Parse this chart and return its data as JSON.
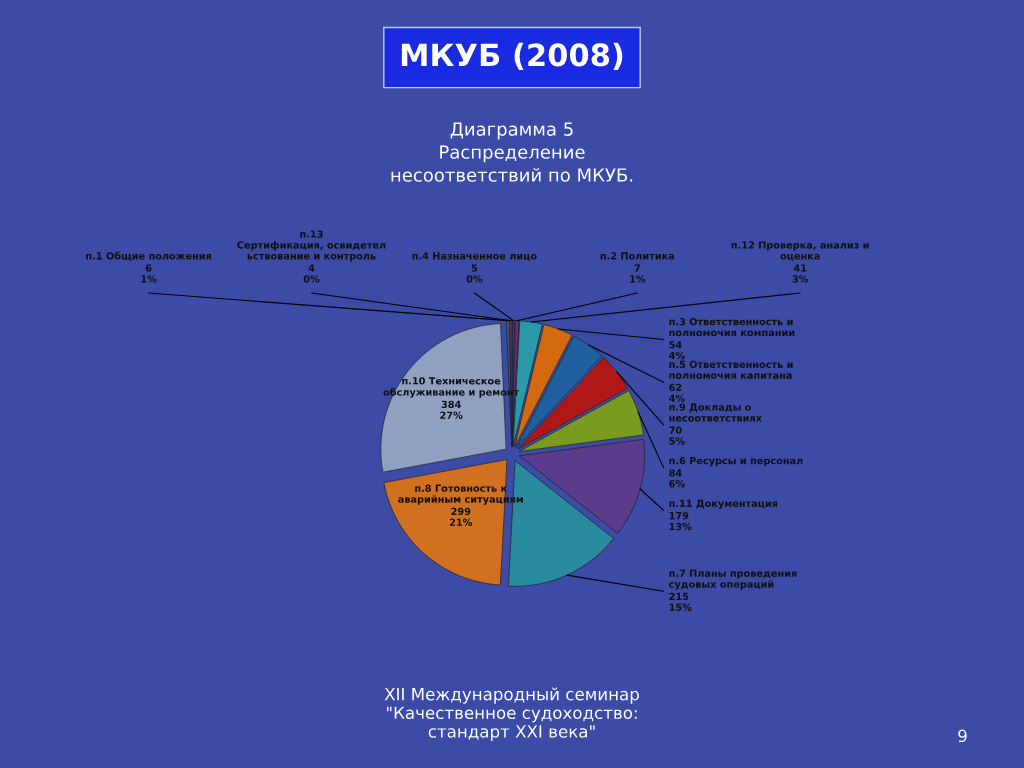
{
  "chart_data": {
    "type": "pie",
    "title": "МКУБ (2008)",
    "subtitle": "Диаграмма 5\nРаспределение\nнесоответствий по МКУБ.",
    "categories": [
      "п.4 Назначенное лицо",
      "п.2 Политика",
      "п.12 Проверка, анализ и\nоценка",
      "п.3 Ответственность и\nполномочия компании",
      "п.5 Ответственность и\nполномочия капитана",
      "п.9 Доклады о\nнесоответствиях",
      "п.6 Ресурсы и персонал",
      "п.11 Документация",
      "п.7 Планы проведения\nсудовых операций",
      "п.8 Готовность к\nаварийным ситуациям",
      "п.10 Техническое\nобслуживание и ремонт",
      "п.1 Общие положения",
      "п.13\nСертификация, освидетел\nьствование и контроль"
    ],
    "values": [
      5,
      7,
      41,
      54,
      62,
      70,
      84,
      179,
      215,
      299,
      384,
      6,
      4
    ],
    "value_labels": [
      "5\n0%",
      "7\n1%",
      "41\n3%",
      "54\n4%",
      "62\n4%",
      "70\n5%",
      "84\n6%",
      "179\n13%",
      "215\n15%",
      "299\n21%",
      "384\n27%",
      "6\n1%",
      "4\n0%"
    ],
    "colors": [
      "#1f3f8f",
      "#6a2a7a",
      "#2a9aa8",
      "#d46a10",
      "#1f5fa0",
      "#b01818",
      "#7a9a20",
      "#5a3a8a",
      "#2a8aa0",
      "#d07020",
      "#8fa0c0",
      "#2a5a90",
      "#8a3030"
    ],
    "legend": false,
    "annotations": [
      "XII Международный семинар\n\"Качественное судоходство:\nстандарт XXI века\"",
      "9"
    ]
  }
}
